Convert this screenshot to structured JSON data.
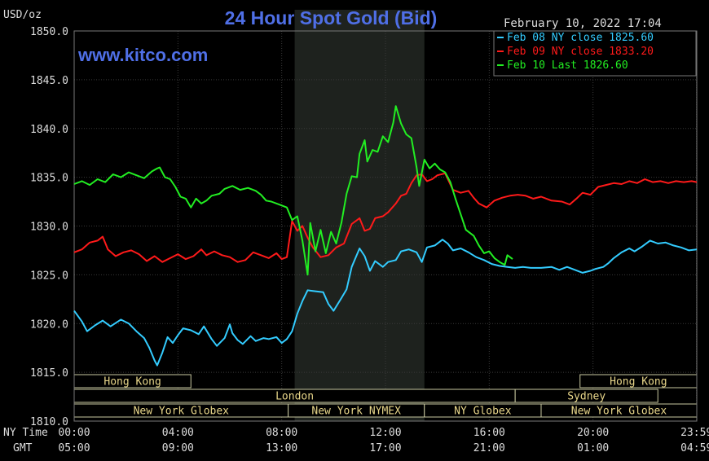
{
  "chart_data": {
    "type": "line",
    "title": "24 Hour Spot Gold (Bid)",
    "watermark": "www.kitco.com",
    "timestamp": "February 10, 2022 17:04",
    "ylabel": "USD/oz",
    "ylim": [
      1810,
      1850
    ],
    "yticks": [
      "1850.0",
      "1845.0",
      "1840.0",
      "1835.0",
      "1830.0",
      "1825.0",
      "1820.0",
      "1815.0",
      "1810.0"
    ],
    "xlim": [
      0,
      24
    ],
    "ny_time_label": "NY Time",
    "gmt_label": "GMT",
    "ny_ticks": [
      "00:00",
      "04:00",
      "08:00",
      "12:00",
      "16:00",
      "20:00",
      "23:59"
    ],
    "gmt_ticks": [
      "05:00",
      "09:00",
      "13:00",
      "17:00",
      "21:00",
      "01:00",
      "04:59"
    ],
    "highlight_hours": [
      8.5,
      13.5
    ],
    "sessions": [
      {
        "name": "Hong Kong",
        "row": 1,
        "start": 0,
        "end": 4.5
      },
      {
        "name": "Hong Kong",
        "row": 1,
        "start": 19.5,
        "end": 24
      },
      {
        "name": "London",
        "row": 2,
        "start": 0,
        "end": 17
      },
      {
        "name": "Sydney",
        "row": 2,
        "start": 17,
        "end": 22.5
      },
      {
        "name": "New York Globex",
        "row": 3,
        "start": 0,
        "end": 8.25
      },
      {
        "name": "New York NYMEX",
        "row": 3,
        "start": 8.25,
        "end": 13.5
      },
      {
        "name": "NY Globex",
        "row": 3,
        "start": 13.5,
        "end": 18
      },
      {
        "name": "New York Globex",
        "row": 3,
        "start": 18,
        "end": 24
      }
    ],
    "series": [
      {
        "name": "Feb 08 NY close 1825.60",
        "color": "#33ccff",
        "points": [
          [
            0,
            1821.3
          ],
          [
            0.3,
            1820.2
          ],
          [
            0.5,
            1819.2
          ],
          [
            0.8,
            1819.8
          ],
          [
            1.1,
            1820.3
          ],
          [
            1.4,
            1819.7
          ],
          [
            1.8,
            1820.4
          ],
          [
            2.1,
            1820.0
          ],
          [
            2.4,
            1819.2
          ],
          [
            2.7,
            1818.5
          ],
          [
            2.9,
            1817.5
          ],
          [
            3.1,
            1816.2
          ],
          [
            3.2,
            1815.7
          ],
          [
            3.4,
            1817.0
          ],
          [
            3.6,
            1818.6
          ],
          [
            3.8,
            1818.0
          ],
          [
            4.0,
            1818.8
          ],
          [
            4.2,
            1819.5
          ],
          [
            4.5,
            1819.3
          ],
          [
            4.8,
            1818.9
          ],
          [
            5.0,
            1819.7
          ],
          [
            5.3,
            1818.4
          ],
          [
            5.5,
            1817.7
          ],
          [
            5.8,
            1818.5
          ],
          [
            6.0,
            1819.9
          ],
          [
            6.1,
            1819.0
          ],
          [
            6.3,
            1818.3
          ],
          [
            6.5,
            1817.9
          ],
          [
            6.8,
            1818.7
          ],
          [
            7.0,
            1818.2
          ],
          [
            7.3,
            1818.5
          ],
          [
            7.5,
            1818.4
          ],
          [
            7.8,
            1818.6
          ],
          [
            8.0,
            1818.0
          ],
          [
            8.2,
            1818.4
          ],
          [
            8.4,
            1819.2
          ],
          [
            8.6,
            1821.0
          ],
          [
            8.8,
            1822.3
          ],
          [
            9.0,
            1823.4
          ],
          [
            9.3,
            1823.3
          ],
          [
            9.6,
            1823.2
          ],
          [
            9.8,
            1822.0
          ],
          [
            10.0,
            1821.3
          ],
          [
            10.3,
            1822.6
          ],
          [
            10.5,
            1823.5
          ],
          [
            10.7,
            1825.8
          ],
          [
            11.0,
            1827.7
          ],
          [
            11.2,
            1826.9
          ],
          [
            11.4,
            1825.4
          ],
          [
            11.6,
            1826.4
          ],
          [
            11.9,
            1825.8
          ],
          [
            12.1,
            1826.3
          ],
          [
            12.4,
            1826.5
          ],
          [
            12.6,
            1827.4
          ],
          [
            12.9,
            1827.6
          ],
          [
            13.2,
            1827.3
          ],
          [
            13.4,
            1826.3
          ],
          [
            13.6,
            1827.8
          ],
          [
            13.9,
            1828.0
          ],
          [
            14.2,
            1828.6
          ],
          [
            14.4,
            1828.2
          ],
          [
            14.6,
            1827.5
          ],
          [
            14.9,
            1827.7
          ],
          [
            15.2,
            1827.3
          ],
          [
            15.5,
            1826.8
          ],
          [
            15.8,
            1826.5
          ],
          [
            16.1,
            1826.1
          ],
          [
            16.4,
            1825.9
          ],
          [
            16.7,
            1825.8
          ],
          [
            17.0,
            1825.7
          ],
          [
            17.3,
            1825.8
          ],
          [
            17.6,
            1825.7
          ],
          [
            18.0,
            1825.7
          ],
          [
            18.4,
            1825.8
          ],
          [
            18.7,
            1825.5
          ],
          [
            19.0,
            1825.8
          ],
          [
            19.3,
            1825.5
          ],
          [
            19.6,
            1825.2
          ],
          [
            19.9,
            1825.4
          ],
          [
            20.1,
            1825.6
          ],
          [
            20.4,
            1825.8
          ],
          [
            20.6,
            1826.2
          ],
          [
            20.8,
            1826.7
          ],
          [
            21.1,
            1827.3
          ],
          [
            21.4,
            1827.7
          ],
          [
            21.6,
            1827.4
          ],
          [
            21.9,
            1827.9
          ],
          [
            22.2,
            1828.5
          ],
          [
            22.5,
            1828.2
          ],
          [
            22.8,
            1828.3
          ],
          [
            23.1,
            1828.0
          ],
          [
            23.4,
            1827.8
          ],
          [
            23.7,
            1827.5
          ],
          [
            24.0,
            1827.6
          ]
        ]
      },
      {
        "name": "Feb 09 NY close 1833.20",
        "color": "#ff1a1a",
        "points": [
          [
            0,
            1827.3
          ],
          [
            0.3,
            1827.6
          ],
          [
            0.6,
            1828.3
          ],
          [
            0.9,
            1828.5
          ],
          [
            1.1,
            1828.9
          ],
          [
            1.3,
            1827.6
          ],
          [
            1.6,
            1826.9
          ],
          [
            1.9,
            1827.3
          ],
          [
            2.2,
            1827.5
          ],
          [
            2.5,
            1827.1
          ],
          [
            2.8,
            1826.4
          ],
          [
            3.1,
            1826.9
          ],
          [
            3.4,
            1826.3
          ],
          [
            3.7,
            1826.7
          ],
          [
            4.0,
            1827.1
          ],
          [
            4.3,
            1826.6
          ],
          [
            4.6,
            1826.9
          ],
          [
            4.9,
            1827.6
          ],
          [
            5.1,
            1827.0
          ],
          [
            5.4,
            1827.4
          ],
          [
            5.7,
            1827.0
          ],
          [
            6.0,
            1826.8
          ],
          [
            6.3,
            1826.3
          ],
          [
            6.6,
            1826.5
          ],
          [
            6.9,
            1827.3
          ],
          [
            7.2,
            1827.0
          ],
          [
            7.5,
            1826.7
          ],
          [
            7.8,
            1827.2
          ],
          [
            8.0,
            1826.6
          ],
          [
            8.2,
            1826.8
          ],
          [
            8.4,
            1830.5
          ],
          [
            8.6,
            1829.5
          ],
          [
            8.8,
            1830.0
          ],
          [
            9.0,
            1828.8
          ],
          [
            9.2,
            1827.8
          ],
          [
            9.5,
            1826.8
          ],
          [
            9.8,
            1827.0
          ],
          [
            10.1,
            1827.8
          ],
          [
            10.4,
            1828.2
          ],
          [
            10.7,
            1830.2
          ],
          [
            11.0,
            1830.8
          ],
          [
            11.2,
            1829.5
          ],
          [
            11.4,
            1829.7
          ],
          [
            11.6,
            1830.8
          ],
          [
            11.9,
            1831.0
          ],
          [
            12.1,
            1831.4
          ],
          [
            12.4,
            1832.3
          ],
          [
            12.6,
            1833.1
          ],
          [
            12.8,
            1833.3
          ],
          [
            13.0,
            1834.4
          ],
          [
            13.2,
            1835.2
          ],
          [
            13.4,
            1835.3
          ],
          [
            13.6,
            1834.6
          ],
          [
            13.8,
            1834.8
          ],
          [
            14.0,
            1835.2
          ],
          [
            14.3,
            1835.4
          ],
          [
            14.6,
            1833.7
          ],
          [
            14.9,
            1833.4
          ],
          [
            15.2,
            1833.6
          ],
          [
            15.4,
            1832.9
          ],
          [
            15.6,
            1832.3
          ],
          [
            15.9,
            1831.9
          ],
          [
            16.2,
            1832.6
          ],
          [
            16.5,
            1832.9
          ],
          [
            16.8,
            1833.1
          ],
          [
            17.1,
            1833.2
          ],
          [
            17.4,
            1833.1
          ],
          [
            17.7,
            1832.8
          ],
          [
            18.0,
            1833.0
          ],
          [
            18.4,
            1832.6
          ],
          [
            18.8,
            1832.5
          ],
          [
            19.1,
            1832.2
          ],
          [
            19.4,
            1832.9
          ],
          [
            19.6,
            1833.4
          ],
          [
            19.9,
            1833.2
          ],
          [
            20.2,
            1834.0
          ],
          [
            20.5,
            1834.2
          ],
          [
            20.8,
            1834.4
          ],
          [
            21.1,
            1834.3
          ],
          [
            21.4,
            1834.6
          ],
          [
            21.7,
            1834.4
          ],
          [
            22.0,
            1834.8
          ],
          [
            22.3,
            1834.5
          ],
          [
            22.6,
            1834.6
          ],
          [
            22.9,
            1834.4
          ],
          [
            23.2,
            1834.6
          ],
          [
            23.5,
            1834.5
          ],
          [
            23.8,
            1834.6
          ],
          [
            24.0,
            1834.5
          ]
        ]
      },
      {
        "name": "Feb 10 Last 1826.60",
        "color": "#22ee22",
        "points": [
          [
            0,
            1834.3
          ],
          [
            0.3,
            1834.6
          ],
          [
            0.6,
            1834.2
          ],
          [
            0.9,
            1834.8
          ],
          [
            1.2,
            1834.5
          ],
          [
            1.5,
            1835.3
          ],
          [
            1.8,
            1835.0
          ],
          [
            2.1,
            1835.5
          ],
          [
            2.4,
            1835.2
          ],
          [
            2.7,
            1834.9
          ],
          [
            3.0,
            1835.6
          ],
          [
            3.2,
            1835.9
          ],
          [
            3.3,
            1836.0
          ],
          [
            3.5,
            1835.0
          ],
          [
            3.7,
            1834.8
          ],
          [
            3.9,
            1834.0
          ],
          [
            4.1,
            1833.0
          ],
          [
            4.3,
            1832.8
          ],
          [
            4.5,
            1831.9
          ],
          [
            4.7,
            1832.8
          ],
          [
            4.9,
            1832.3
          ],
          [
            5.1,
            1832.6
          ],
          [
            5.3,
            1833.1
          ],
          [
            5.6,
            1833.3
          ],
          [
            5.8,
            1833.8
          ],
          [
            6.1,
            1834.1
          ],
          [
            6.4,
            1833.7
          ],
          [
            6.7,
            1833.9
          ],
          [
            7.0,
            1833.6
          ],
          [
            7.2,
            1833.2
          ],
          [
            7.4,
            1832.6
          ],
          [
            7.6,
            1832.5
          ],
          [
            7.9,
            1832.2
          ],
          [
            8.2,
            1831.9
          ],
          [
            8.4,
            1830.6
          ],
          [
            8.6,
            1831.0
          ],
          [
            8.8,
            1828.5
          ],
          [
            9.0,
            1825.0
          ],
          [
            9.1,
            1830.3
          ],
          [
            9.3,
            1827.4
          ],
          [
            9.5,
            1829.6
          ],
          [
            9.7,
            1827.2
          ],
          [
            9.9,
            1829.4
          ],
          [
            10.1,
            1828.2
          ],
          [
            10.3,
            1830.3
          ],
          [
            10.5,
            1833.3
          ],
          [
            10.7,
            1835.1
          ],
          [
            10.9,
            1835.0
          ],
          [
            11.0,
            1837.4
          ],
          [
            11.2,
            1838.8
          ],
          [
            11.3,
            1836.6
          ],
          [
            11.5,
            1837.8
          ],
          [
            11.7,
            1837.6
          ],
          [
            11.9,
            1839.2
          ],
          [
            12.1,
            1838.6
          ],
          [
            12.3,
            1840.6
          ],
          [
            12.4,
            1842.3
          ],
          [
            12.6,
            1840.5
          ],
          [
            12.8,
            1839.4
          ],
          [
            13.0,
            1839.0
          ],
          [
            13.2,
            1836.0
          ],
          [
            13.3,
            1834.1
          ],
          [
            13.5,
            1836.8
          ],
          [
            13.7,
            1835.9
          ],
          [
            13.9,
            1836.4
          ],
          [
            14.1,
            1835.8
          ],
          [
            14.3,
            1835.5
          ],
          [
            14.5,
            1834.5
          ],
          [
            14.7,
            1832.8
          ],
          [
            14.9,
            1831.2
          ],
          [
            15.1,
            1829.6
          ],
          [
            15.4,
            1829.0
          ],
          [
            15.6,
            1828.0
          ],
          [
            15.8,
            1827.2
          ],
          [
            16.0,
            1827.4
          ],
          [
            16.2,
            1826.7
          ],
          [
            16.4,
            1826.3
          ],
          [
            16.6,
            1826.0
          ],
          [
            16.7,
            1827.0
          ],
          [
            16.9,
            1826.6
          ]
        ]
      }
    ]
  }
}
